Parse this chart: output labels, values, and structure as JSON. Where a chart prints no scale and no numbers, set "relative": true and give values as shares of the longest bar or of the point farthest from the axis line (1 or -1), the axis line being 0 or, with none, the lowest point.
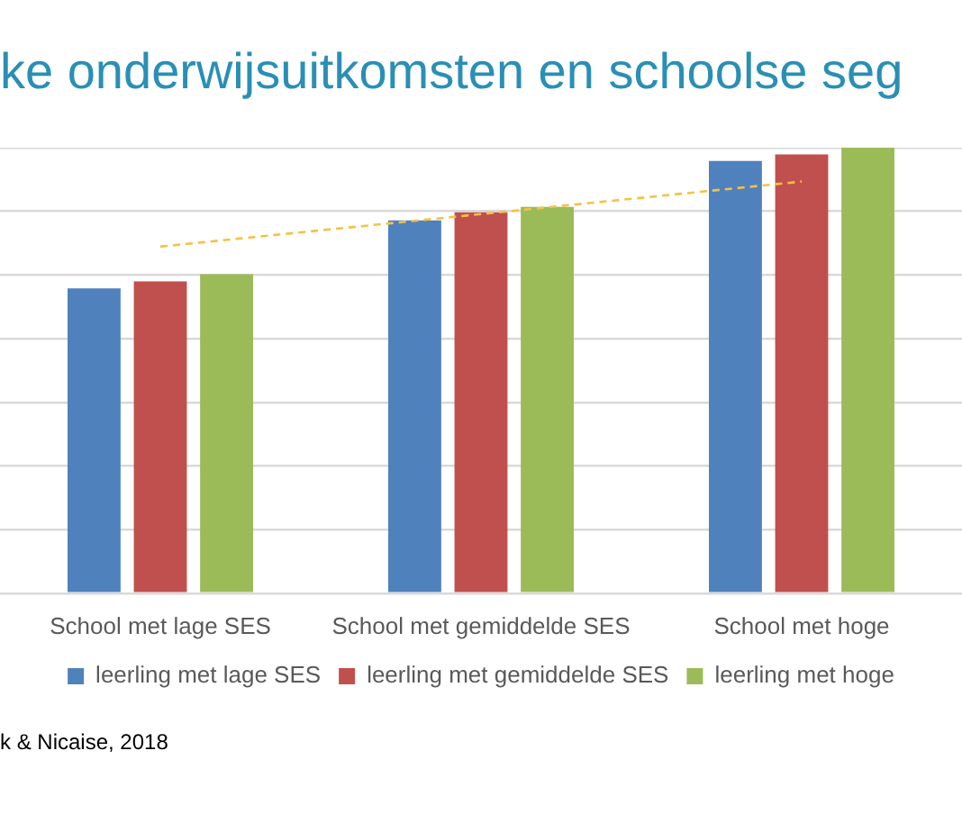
{
  "chart_data": {
    "type": "bar",
    "title": "ke onderwijsuitkomsten en schoolse seg",
    "categories": [
      "School met lage SES",
      "School met gemiddelde SES",
      "School met hoge"
    ],
    "series": [
      {
        "name": "leerling met lage SES",
        "color": "#4f81bd",
        "values": [
          0.684,
          0.837,
          0.97
        ]
      },
      {
        "name": "leerling met gemiddelde SES",
        "color": "#c0504d",
        "values": [
          0.7,
          0.855,
          0.985
        ]
      },
      {
        "name": "leerling met hoge",
        "color": "#9bbb59",
        "values": [
          0.716,
          0.867,
          1
        ]
      },
      {
        "type": "line",
        "color": "#f5c242",
        "line_style": "dashed",
        "marker": "none",
        "values": [
          0.778,
          0.851,
          0.924
        ]
      }
    ],
    "relative": true,
    "grid": "y",
    "legend": "bottom",
    "annotations": [
      "k & Nicaise, 2018"
    ]
  }
}
